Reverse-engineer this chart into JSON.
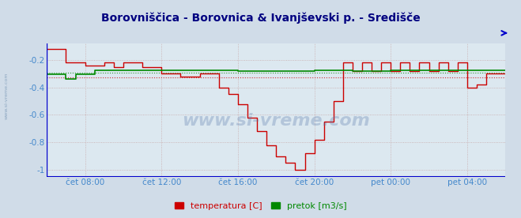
{
  "title": "Borovniščica - Borovnica & Ivanjševski p. - Središče",
  "title_color": "#000080",
  "title_fontsize": 10,
  "bg_color": "#d0dce8",
  "plot_bg_color": "#dce8f0",
  "xlim": [
    0,
    288
  ],
  "ylim": [
    -1.05,
    -0.08
  ],
  "yticks": [
    -1.0,
    -0.8,
    -0.6,
    -0.4,
    -0.2
  ],
  "xtick_labels": [
    "čet 08:00",
    "čet 12:00",
    "čet 16:00",
    "čet 20:00",
    "pet 00:00",
    "pet 04:00"
  ],
  "xtick_positions": [
    24,
    72,
    120,
    168,
    216,
    264
  ],
  "grid_color_v": "#c8a8a8",
  "grid_color_h": "#c8a8a8",
  "axis_color": "#0000cc",
  "text_color": "#4488cc",
  "watermark": "www.si-vreme.com",
  "legend_labels": [
    "temperatura [C]",
    "pretok [m3/s]"
  ],
  "legend_colors": [
    "#cc0000",
    "#008800"
  ],
  "temp_avg_line": -0.325,
  "flow_avg_line": -0.29,
  "red_x": [
    0,
    12,
    12,
    24,
    24,
    36,
    36,
    42,
    42,
    48,
    48,
    60,
    60,
    72,
    72,
    84,
    84,
    96,
    96,
    108,
    108,
    114,
    114,
    120,
    120,
    126,
    126,
    132,
    132,
    138,
    138,
    144,
    144,
    150,
    150,
    156,
    156,
    162,
    162,
    168,
    168,
    174,
    174,
    180,
    180,
    186,
    186,
    192,
    192,
    198,
    198,
    204,
    204,
    210,
    210,
    216,
    216,
    222,
    222,
    228,
    228,
    234,
    234,
    240,
    240,
    246,
    246,
    252,
    252,
    258,
    258,
    264,
    264,
    270,
    270,
    276,
    276,
    288
  ],
  "red_y": [
    -0.12,
    -0.12,
    -0.22,
    -0.22,
    -0.24,
    -0.24,
    -0.22,
    -0.22,
    -0.25,
    -0.25,
    -0.22,
    -0.22,
    -0.25,
    -0.25,
    -0.3,
    -0.3,
    -0.32,
    -0.32,
    -0.3,
    -0.3,
    -0.4,
    -0.4,
    -0.45,
    -0.45,
    -0.52,
    -0.52,
    -0.62,
    -0.62,
    -0.72,
    -0.72,
    -0.82,
    -0.82,
    -0.9,
    -0.9,
    -0.95,
    -0.95,
    -1.0,
    -1.0,
    -0.88,
    -0.88,
    -0.78,
    -0.78,
    -0.65,
    -0.65,
    -0.5,
    -0.5,
    -0.22,
    -0.22,
    -0.28,
    -0.28,
    -0.22,
    -0.22,
    -0.28,
    -0.28,
    -0.22,
    -0.22,
    -0.28,
    -0.28,
    -0.22,
    -0.22,
    -0.28,
    -0.28,
    -0.22,
    -0.22,
    -0.28,
    -0.28,
    -0.22,
    -0.22,
    -0.28,
    -0.28,
    -0.22,
    -0.22,
    -0.4,
    -0.4,
    -0.38,
    -0.38,
    -0.3,
    -0.3
  ],
  "green_x": [
    0,
    12,
    12,
    18,
    18,
    30,
    30,
    120,
    120,
    168,
    168,
    192,
    192,
    216,
    216,
    288
  ],
  "green_y": [
    -0.305,
    -0.305,
    -0.34,
    -0.34,
    -0.305,
    -0.305,
    -0.275,
    -0.275,
    -0.28,
    -0.28,
    -0.275,
    -0.275,
    -0.28,
    -0.28,
    -0.275,
    -0.275
  ]
}
